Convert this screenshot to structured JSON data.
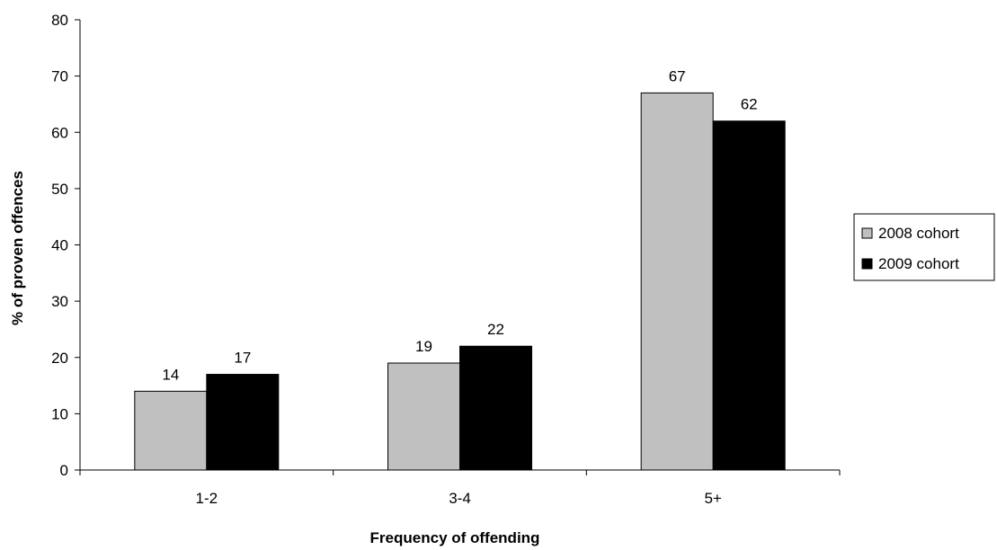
{
  "chart_data": {
    "type": "bar",
    "categories": [
      "1-2",
      "3-4",
      "5+"
    ],
    "series": [
      {
        "name": "2008 cohort",
        "values": [
          14,
          19,
          67
        ],
        "color": "#c0c0c0"
      },
      {
        "name": "2009 cohort",
        "values": [
          17,
          22,
          62
        ],
        "color": "#000000"
      }
    ],
    "data_labels": [
      [
        "14",
        "19",
        "67"
      ],
      [
        "17",
        "22",
        "62"
      ]
    ],
    "xlabel": "Frequency of offending",
    "ylabel": "% of proven offences",
    "ylim": [
      0,
      80
    ],
    "yticks": [
      "0",
      "10",
      "20",
      "30",
      "40",
      "50",
      "60",
      "70",
      "80"
    ],
    "grid": false,
    "legend_position": "right"
  }
}
